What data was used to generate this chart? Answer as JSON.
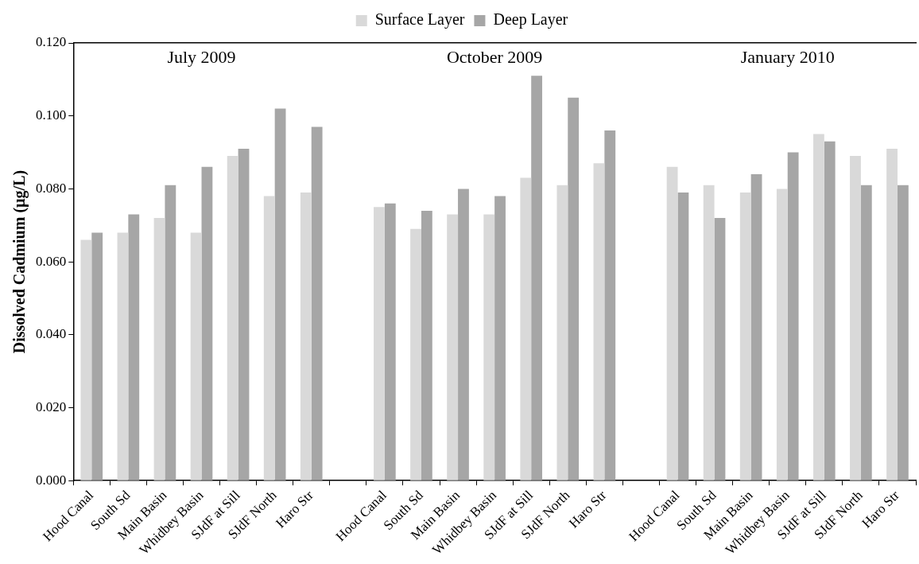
{
  "chart_data": {
    "type": "bar",
    "ylabel": "Dissolved Cadmium (µg/L)",
    "categories": [
      "Hood Canal",
      "South Sd",
      "Main Basin",
      "Whidbey Basin",
      "SJdF at Sill",
      "SJdF North",
      "Haro Str",
      null,
      "Hood Canal",
      "South Sd",
      "Main Basin",
      "Whidbey Basin",
      "SJdF at Sill",
      "SJdF North",
      "Haro Str",
      null,
      "Hood Canal",
      "South Sd",
      "Main Basin",
      "Whidbey Basin",
      "SJdF at Sill",
      "SJdF North",
      "Haro Str"
    ],
    "series": [
      {
        "name": "Surface Layer",
        "color": "#d9d9d9",
        "values": [
          0.066,
          0.068,
          0.072,
          0.068,
          0.089,
          0.078,
          0.079,
          null,
          0.075,
          0.069,
          0.073,
          0.073,
          0.083,
          0.081,
          0.087,
          null,
          0.086,
          0.081,
          0.079,
          0.08,
          0.095,
          0.089,
          0.091
        ]
      },
      {
        "name": "Deep Layer",
        "color": "#a6a6a6",
        "values": [
          0.068,
          0.073,
          0.081,
          0.086,
          0.091,
          0.102,
          0.097,
          null,
          0.076,
          0.074,
          0.08,
          0.078,
          0.111,
          0.105,
          0.096,
          null,
          0.079,
          0.072,
          0.084,
          0.09,
          0.093,
          0.081,
          0.081
        ]
      }
    ],
    "ylim": [
      0,
      0.12
    ],
    "yticks": [
      {
        "value": 0,
        "label": "0.000"
      },
      {
        "value": 0.02,
        "label": "0.020"
      },
      {
        "value": 0.04,
        "label": "0.040"
      },
      {
        "value": 0.06,
        "label": "0.060"
      },
      {
        "value": 0.08,
        "label": "0.080"
      },
      {
        "value": 0.1,
        "label": "0.100"
      },
      {
        "value": 0.12,
        "label": "0.120"
      }
    ],
    "annotations": [
      "July 2009",
      "October 2009",
      "January 2010"
    ],
    "grid": false,
    "legend": "top"
  }
}
